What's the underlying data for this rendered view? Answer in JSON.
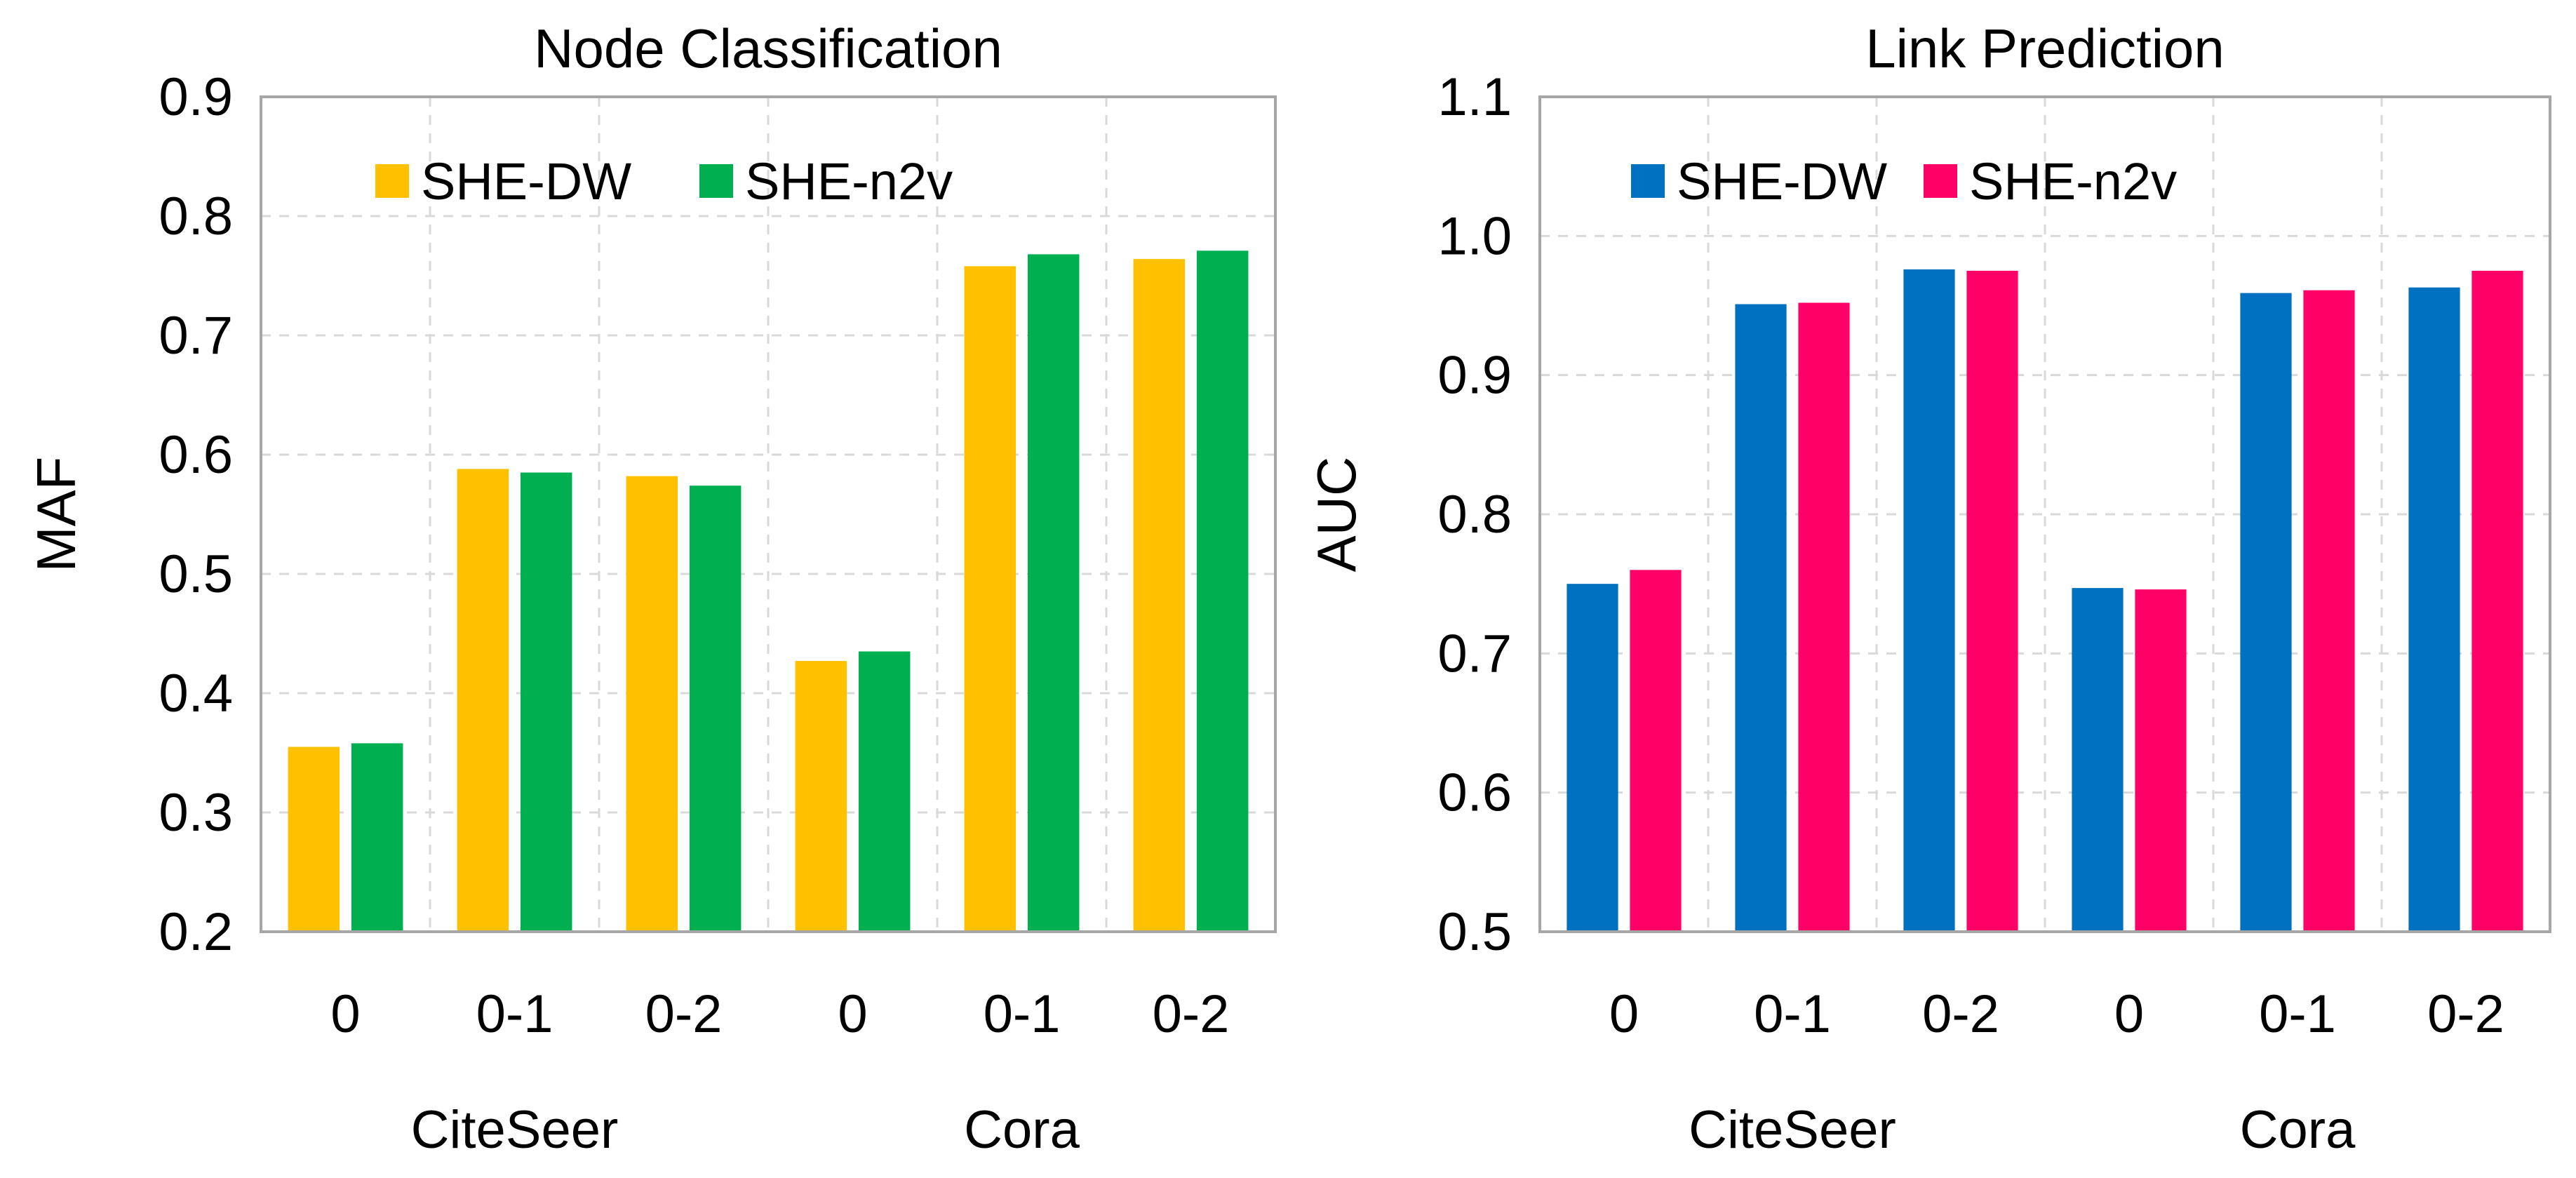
{
  "chart_data": [
    {
      "type": "bar",
      "title": "Node Classification",
      "xlabel": "",
      "ylabel": "MAF",
      "ylim": [
        0.2,
        0.9
      ],
      "yticks": [
        "0.2",
        "0.3",
        "0.4",
        "0.5",
        "0.6",
        "0.7",
        "0.8",
        "0.9"
      ],
      "categories": [
        "0",
        "0-1",
        "0-2",
        "0",
        "0-1",
        "0-2"
      ],
      "groups": [
        {
          "label": "CiteSeer",
          "span": [
            0,
            2
          ]
        },
        {
          "label": "Cora",
          "span": [
            3,
            5
          ]
        }
      ],
      "legend_position": "top-left",
      "gridlines": true,
      "series": [
        {
          "name": "SHE-DW",
          "color": "#FFC000",
          "values": [
            0.355,
            0.588,
            0.582,
            0.427,
            0.758,
            0.764
          ]
        },
        {
          "name": "SHE-n2v",
          "color": "#00B050",
          "values": [
            0.358,
            0.585,
            0.574,
            0.435,
            0.768,
            0.771
          ]
        }
      ]
    },
    {
      "type": "bar",
      "title": "Link Prediction",
      "xlabel": "",
      "ylabel": "AUC",
      "ylim": [
        0.5,
        1.1
      ],
      "yticks": [
        "0.5",
        "0.6",
        "0.7",
        "0.8",
        "0.9",
        "1.0",
        "1.1"
      ],
      "categories": [
        "0",
        "0-1",
        "0-2",
        "0",
        "0-1",
        "0-2"
      ],
      "groups": [
        {
          "label": "CiteSeer",
          "span": [
            0,
            2
          ]
        },
        {
          "label": "Cora",
          "span": [
            3,
            5
          ]
        }
      ],
      "legend_position": "top-left",
      "gridlines": true,
      "series": [
        {
          "name": "SHE-DW",
          "color": "#0070C0",
          "values": [
            0.75,
            0.951,
            0.976,
            0.747,
            0.959,
            0.963
          ]
        },
        {
          "name": "SHE-n2v",
          "color": "#FF0066",
          "values": [
            0.76,
            0.952,
            0.975,
            0.746,
            0.961,
            0.975
          ]
        }
      ]
    }
  ]
}
